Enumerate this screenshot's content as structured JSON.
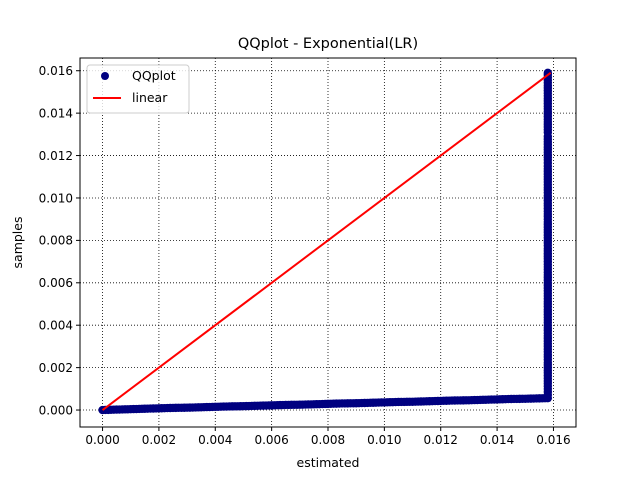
{
  "chart_data": {
    "type": "scatter",
    "title": "QQplot - Exponential(LR)",
    "xlabel": "estimated",
    "ylabel": "samples",
    "xlim": [
      -0.0008,
      0.0168
    ],
    "ylim": [
      -0.0008,
      0.0166
    ],
    "xticks": [
      0.0,
      0.002,
      0.004,
      0.006,
      0.008,
      0.01,
      0.012,
      0.014,
      0.016
    ],
    "yticks": [
      0.0,
      0.002,
      0.004,
      0.006,
      0.008,
      0.01,
      0.012,
      0.014,
      0.016
    ],
    "xtick_labels": [
      "0.000",
      "0.002",
      "0.004",
      "0.006",
      "0.008",
      "0.010",
      "0.012",
      "0.014",
      "0.016"
    ],
    "ytick_labels": [
      "0.000",
      "0.002",
      "0.004",
      "0.006",
      "0.008",
      "0.010",
      "0.012",
      "0.014",
      "0.016"
    ],
    "grid": true,
    "grid_style": "dotted",
    "legend_position": "top-left",
    "series": [
      {
        "name": "QQplot",
        "kind": "scatter",
        "color": "#000080",
        "points": [
          [
            0.0,
            0.0
          ],
          [
            0.0005,
            2e-05
          ],
          [
            0.001,
            4e-05
          ],
          [
            0.0015,
            6e-05
          ],
          [
            0.002,
            8e-05
          ],
          [
            0.0025,
            0.0001
          ],
          [
            0.003,
            0.00011
          ],
          [
            0.0035,
            0.00013
          ],
          [
            0.004,
            0.00015
          ],
          [
            0.0045,
            0.00017
          ],
          [
            0.005,
            0.00018
          ],
          [
            0.0055,
            0.0002
          ],
          [
            0.006,
            0.00022
          ],
          [
            0.0065,
            0.00024
          ],
          [
            0.007,
            0.00025
          ],
          [
            0.0075,
            0.00027
          ],
          [
            0.008,
            0.00029
          ],
          [
            0.0085,
            0.00031
          ],
          [
            0.009,
            0.00032
          ],
          [
            0.0095,
            0.00034
          ],
          [
            0.01,
            0.00036
          ],
          [
            0.0105,
            0.00038
          ],
          [
            0.011,
            0.00039
          ],
          [
            0.0115,
            0.00041
          ],
          [
            0.012,
            0.00043
          ],
          [
            0.0125,
            0.00045
          ],
          [
            0.013,
            0.00046
          ],
          [
            0.0135,
            0.00048
          ],
          [
            0.014,
            0.0005
          ],
          [
            0.0145,
            0.00052
          ],
          [
            0.015,
            0.00053
          ],
          [
            0.0155,
            0.00055
          ],
          [
            0.0158,
            0.00056
          ],
          [
            0.0158,
            0.001
          ],
          [
            0.0158,
            0.0015
          ],
          [
            0.0158,
            0.002
          ],
          [
            0.0158,
            0.0025
          ],
          [
            0.0158,
            0.003
          ],
          [
            0.0158,
            0.0035
          ],
          [
            0.0158,
            0.004
          ],
          [
            0.0158,
            0.0045
          ],
          [
            0.0158,
            0.005
          ],
          [
            0.0158,
            0.0055
          ],
          [
            0.0158,
            0.006
          ],
          [
            0.0158,
            0.0065
          ],
          [
            0.0158,
            0.007
          ],
          [
            0.0158,
            0.0075
          ],
          [
            0.0158,
            0.008
          ],
          [
            0.0158,
            0.0085
          ],
          [
            0.0158,
            0.009
          ],
          [
            0.0158,
            0.0095
          ],
          [
            0.0158,
            0.01
          ],
          [
            0.0158,
            0.0105
          ],
          [
            0.0158,
            0.011
          ],
          [
            0.0158,
            0.0115
          ],
          [
            0.0158,
            0.0118
          ],
          [
            0.0158,
            0.0124
          ],
          [
            0.0158,
            0.0129
          ],
          [
            0.0158,
            0.0131
          ],
          [
            0.0158,
            0.0158
          ],
          [
            0.0158,
            0.0159
          ]
        ]
      },
      {
        "name": "linear",
        "kind": "line",
        "color": "#ff0000",
        "points": [
          [
            0.0,
            0.0
          ],
          [
            0.0159,
            0.0159
          ]
        ]
      }
    ]
  }
}
